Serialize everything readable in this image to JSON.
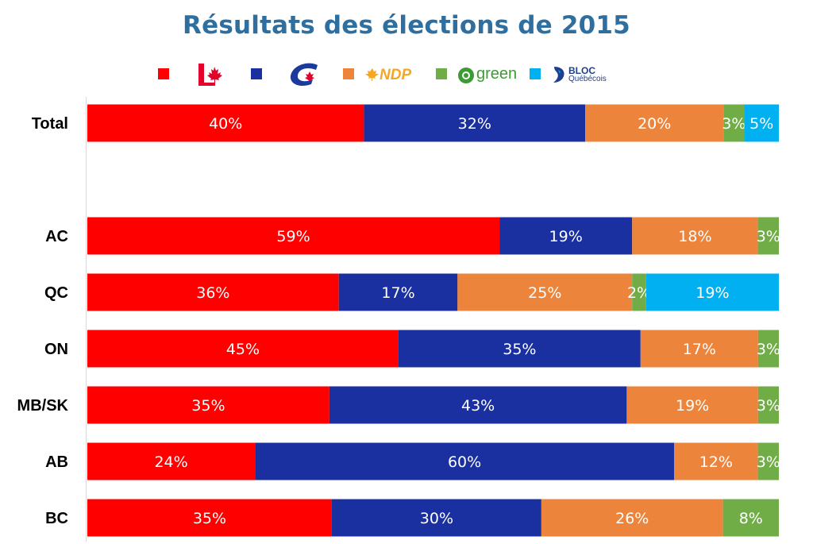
{
  "chart_data": {
    "type": "bar",
    "orientation": "horizontal",
    "stacked": true,
    "title": "Résultats des élections de 2015",
    "xlabel": "",
    "ylabel": "",
    "xlim": [
      0,
      100
    ],
    "unit": "%",
    "grid": false,
    "legend_position": "top",
    "categories": [
      "Total",
      "AC",
      "QC",
      "ON",
      "MB/SK",
      "AB",
      "BC"
    ],
    "series": [
      {
        "color": "#ff0000",
        "logo": "liberal-logo",
        "values": [
          40,
          59,
          36,
          45,
          35,
          24,
          35
        ],
        "labels": [
          "40%",
          "59%",
          "36%",
          "45%",
          "35%",
          "24%",
          "35%"
        ]
      },
      {
        "color": "#1a2fa0",
        "logo": "conservative-logo",
        "values": [
          32,
          19,
          17,
          35,
          43,
          60,
          30
        ],
        "labels": [
          "32%",
          "19%",
          "17%",
          "35%",
          "43%",
          "60%",
          "30%"
        ]
      },
      {
        "color": "#ed843b",
        "logo": "ndp-logo",
        "logo_text": "NDP",
        "values": [
          20,
          18,
          25,
          17,
          19,
          12,
          26
        ],
        "labels": [
          "20%",
          "18%",
          "25%",
          "17%",
          "19%",
          "12%",
          "26%"
        ]
      },
      {
        "color": "#70ad47",
        "logo": "green-logo",
        "logo_text": "green",
        "values": [
          3,
          3,
          2,
          3,
          3,
          3,
          8
        ],
        "labels": [
          "3%",
          "3%",
          "2%",
          "3%",
          "3%",
          "3%",
          "8%"
        ]
      },
      {
        "color": "#00b0f0",
        "logo": "bloc-logo",
        "logo_text": "BLOC",
        "logo_subtext": "Québécois",
        "values": [
          5,
          0,
          19,
          0,
          0,
          0,
          0
        ],
        "labels": [
          "5%",
          "",
          "19%",
          "",
          "",
          "",
          ""
        ]
      }
    ]
  }
}
